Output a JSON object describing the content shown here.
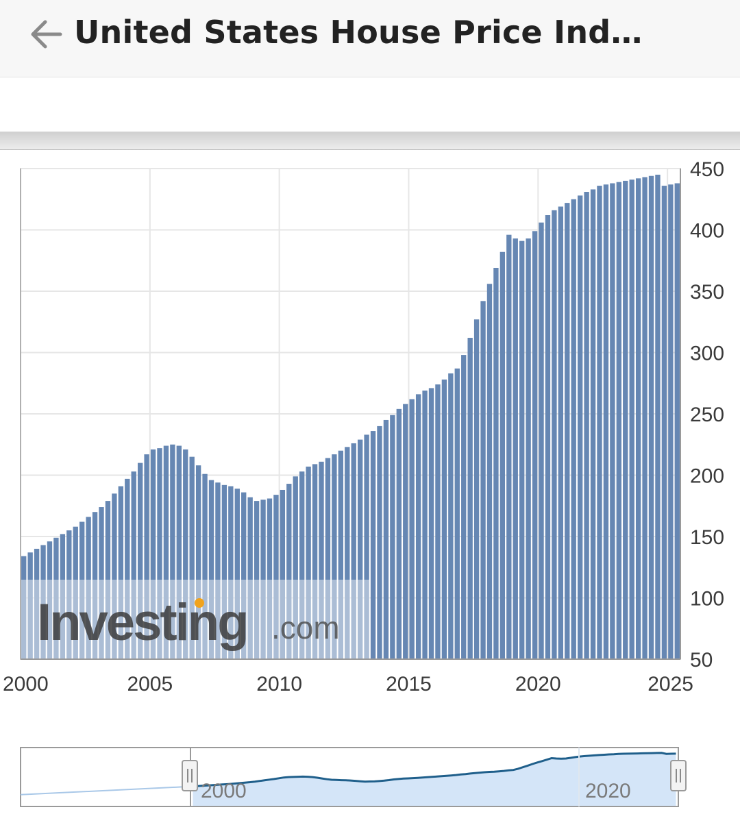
{
  "header": {
    "title": "United States House Price Index (H…",
    "back_icon": "arrow-left-icon"
  },
  "chart_data": {
    "type": "bar",
    "x": [
      2000.0,
      2000.25,
      2000.5,
      2000.75,
      2001.0,
      2001.25,
      2001.5,
      2001.75,
      2002.0,
      2002.25,
      2002.5,
      2002.75,
      2003.0,
      2003.25,
      2003.5,
      2003.75,
      2004.0,
      2004.25,
      2004.5,
      2004.75,
      2005.0,
      2005.25,
      2005.5,
      2005.75,
      2006.0,
      2006.25,
      2006.5,
      2006.75,
      2007.0,
      2007.25,
      2007.5,
      2007.75,
      2008.0,
      2008.25,
      2008.5,
      2008.75,
      2009.0,
      2009.25,
      2009.5,
      2009.75,
      2010.0,
      2010.25,
      2010.5,
      2010.75,
      2011.0,
      2011.25,
      2011.5,
      2011.75,
      2012.0,
      2012.25,
      2012.5,
      2012.75,
      2013.0,
      2013.25,
      2013.5,
      2013.75,
      2014.0,
      2014.25,
      2014.5,
      2014.75,
      2015.0,
      2015.25,
      2015.5,
      2015.75,
      2016.0,
      2016.25,
      2016.5,
      2016.75,
      2017.0,
      2017.25,
      2017.5,
      2017.75,
      2018.0,
      2018.25,
      2018.5,
      2018.75,
      2019.0,
      2019.25,
      2019.5,
      2019.75,
      2020.0,
      2020.25,
      2020.5,
      2020.75,
      2021.0,
      2021.25,
      2021.5,
      2021.75,
      2022.0,
      2022.25,
      2022.5,
      2022.75,
      2023.0,
      2023.25,
      2023.5,
      2023.75,
      2024.0,
      2024.25,
      2024.5,
      2024.75,
      2025.0,
      2025.25
    ],
    "values": [
      134,
      137,
      140,
      143,
      146,
      149,
      152,
      155,
      158,
      162,
      166,
      170,
      174,
      179,
      185,
      191,
      197,
      203,
      210,
      217,
      221,
      222,
      224,
      225,
      224,
      221,
      215,
      208,
      201,
      196,
      194,
      192,
      191,
      189,
      186,
      182,
      179,
      180,
      181,
      184,
      188,
      193,
      199,
      203,
      207,
      209,
      211,
      214,
      217,
      220,
      223,
      226,
      229,
      233,
      236,
      240,
      245,
      249,
      254,
      258,
      262,
      266,
      269,
      271,
      274,
      278,
      283,
      287,
      298,
      312,
      327,
      342,
      356,
      369,
      382,
      396,
      393,
      391,
      393,
      399,
      406,
      412,
      416,
      419,
      422,
      425,
      428,
      431,
      433,
      436,
      437,
      438,
      439,
      440,
      441,
      442,
      443,
      444,
      445,
      436,
      437,
      438
    ],
    "xticks": [
      "2000",
      "2005",
      "2010",
      "2015",
      "2020",
      "2025"
    ],
    "yticks": [
      "450",
      "400",
      "350",
      "300",
      "250",
      "200",
      "150",
      "100",
      "50"
    ],
    "xlim": [
      2000,
      2025.5
    ],
    "ylim": [
      50,
      450
    ],
    "grid": true,
    "color": "#6687b3"
  },
  "navigator": {
    "labels": [
      "2000",
      "2020"
    ],
    "line_color": "#1f5f8b",
    "fill_color": "#d4e5f8",
    "handle_left_icon": "grip-handle-icon",
    "handle_right_icon": "grip-handle-icon"
  },
  "watermark": {
    "brand": "Investing",
    "suffix": ".com"
  }
}
